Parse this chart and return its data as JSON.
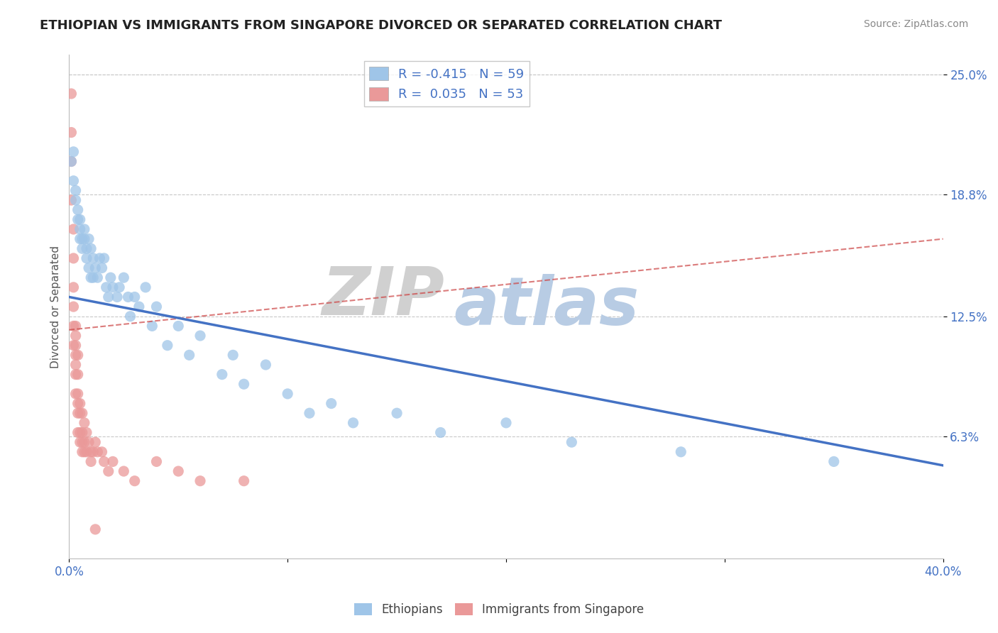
{
  "title": "ETHIOPIAN VS IMMIGRANTS FROM SINGAPORE DIVORCED OR SEPARATED CORRELATION CHART",
  "source_text": "Source: ZipAtlas.com",
  "xlabel": "",
  "ylabel": "Divorced or Separated",
  "xlim": [
    0.0,
    0.4
  ],
  "ylim": [
    0.0,
    0.26
  ],
  "xticks": [
    0.0,
    0.1,
    0.2,
    0.3,
    0.4
  ],
  "xtick_labels": [
    "0.0%",
    "",
    "",
    "",
    "40.0%"
  ],
  "ytick_vals": [
    0.063,
    0.125,
    0.188,
    0.25
  ],
  "ytick_labels": [
    "6.3%",
    "12.5%",
    "18.8%",
    "25.0%"
  ],
  "series": [
    {
      "name": "Ethiopians",
      "R": -0.415,
      "N": 59,
      "color": "#9fc5e8",
      "marker_color": "#9fc5e8",
      "line_color": "#4472c4",
      "line_style": "solid",
      "x": [
        0.001,
        0.002,
        0.002,
        0.003,
        0.003,
        0.004,
        0.004,
        0.005,
        0.005,
        0.005,
        0.006,
        0.006,
        0.007,
        0.007,
        0.008,
        0.008,
        0.009,
        0.009,
        0.01,
        0.01,
        0.011,
        0.011,
        0.012,
        0.013,
        0.014,
        0.015,
        0.016,
        0.017,
        0.018,
        0.019,
        0.02,
        0.022,
        0.023,
        0.025,
        0.027,
        0.028,
        0.03,
        0.032,
        0.035,
        0.038,
        0.04,
        0.045,
        0.05,
        0.055,
        0.06,
        0.07,
        0.075,
        0.08,
        0.09,
        0.1,
        0.11,
        0.12,
        0.13,
        0.15,
        0.17,
        0.2,
        0.23,
        0.28,
        0.35
      ],
      "y": [
        0.205,
        0.21,
        0.195,
        0.19,
        0.185,
        0.18,
        0.175,
        0.175,
        0.17,
        0.165,
        0.165,
        0.16,
        0.165,
        0.17,
        0.16,
        0.155,
        0.165,
        0.15,
        0.16,
        0.145,
        0.155,
        0.145,
        0.15,
        0.145,
        0.155,
        0.15,
        0.155,
        0.14,
        0.135,
        0.145,
        0.14,
        0.135,
        0.14,
        0.145,
        0.135,
        0.125,
        0.135,
        0.13,
        0.14,
        0.12,
        0.13,
        0.11,
        0.12,
        0.105,
        0.115,
        0.095,
        0.105,
        0.09,
        0.1,
        0.085,
        0.075,
        0.08,
        0.07,
        0.075,
        0.065,
        0.07,
        0.06,
        0.055,
        0.05
      ],
      "trend_x": [
        0.0,
        0.4
      ],
      "trend_y": [
        0.135,
        0.048
      ]
    },
    {
      "name": "Immigrants from Singapore",
      "R": 0.035,
      "N": 53,
      "color": "#ea9999",
      "marker_color": "#ea9999",
      "line_color": "#cc4444",
      "line_style": "dashed",
      "x": [
        0.001,
        0.001,
        0.001,
        0.001,
        0.002,
        0.002,
        0.002,
        0.002,
        0.002,
        0.002,
        0.003,
        0.003,
        0.003,
        0.003,
        0.003,
        0.003,
        0.003,
        0.004,
        0.004,
        0.004,
        0.004,
        0.004,
        0.004,
        0.005,
        0.005,
        0.005,
        0.005,
        0.006,
        0.006,
        0.006,
        0.006,
        0.007,
        0.007,
        0.007,
        0.008,
        0.008,
        0.009,
        0.01,
        0.01,
        0.011,
        0.012,
        0.013,
        0.015,
        0.016,
        0.018,
        0.02,
        0.025,
        0.03,
        0.04,
        0.05,
        0.06,
        0.08,
        0.012
      ],
      "y": [
        0.24,
        0.22,
        0.205,
        0.185,
        0.17,
        0.155,
        0.14,
        0.13,
        0.12,
        0.11,
        0.12,
        0.115,
        0.11,
        0.105,
        0.1,
        0.095,
        0.085,
        0.105,
        0.095,
        0.085,
        0.08,
        0.075,
        0.065,
        0.08,
        0.075,
        0.065,
        0.06,
        0.075,
        0.065,
        0.06,
        0.055,
        0.07,
        0.06,
        0.055,
        0.065,
        0.055,
        0.06,
        0.055,
        0.05,
        0.055,
        0.06,
        0.055,
        0.055,
        0.05,
        0.045,
        0.05,
        0.045,
        0.04,
        0.05,
        0.045,
        0.04,
        0.04,
        0.015
      ],
      "trend_x": [
        0.0,
        0.4
      ],
      "trend_y": [
        0.118,
        0.165
      ]
    }
  ],
  "background_color": "#ffffff",
  "grid_color": "#c8c8c8",
  "title_color": "#222222",
  "axis_color": "#4472c4",
  "title_fontsize": 13,
  "label_fontsize": 11,
  "tick_fontsize": 12,
  "source_fontsize": 10
}
